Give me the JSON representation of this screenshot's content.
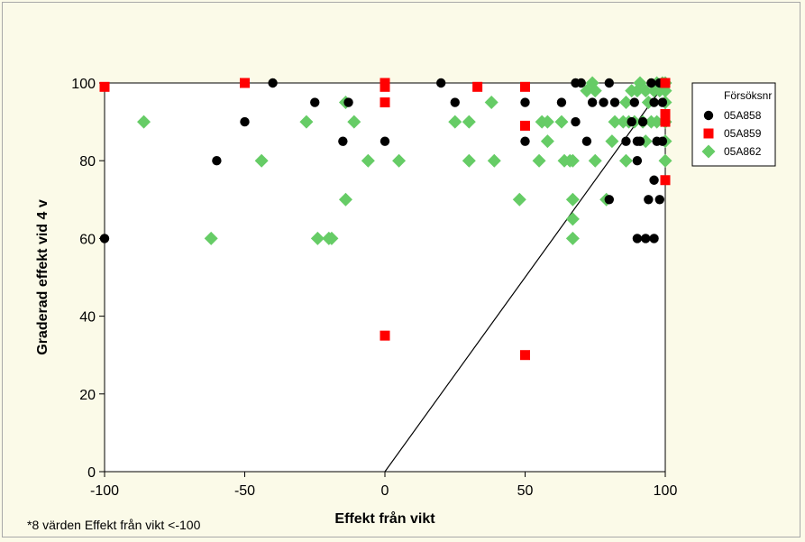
{
  "chart_data": {
    "type": "scatter",
    "xlabel": "Effekt från vikt",
    "ylabel": "Graderad effekt vid 4 v",
    "xlim": [
      -100,
      100
    ],
    "ylim": [
      0,
      100
    ],
    "xticks": [
      "-100",
      "-50",
      "0",
      "50",
      "100"
    ],
    "yticks": [
      "0",
      "20",
      "40",
      "60",
      "80",
      "100"
    ],
    "footnote": "*8 värden Effekt från vikt <-100",
    "grid": false,
    "legend": {
      "placement": "right",
      "title": "Försöksnr"
    },
    "colors": {
      "background": "#fbfae8",
      "plot_background": "#ffffff"
    },
    "reference_line": {
      "x": [
        0,
        100
      ],
      "y": [
        0,
        100
      ]
    },
    "series": [
      {
        "name": "05A858",
        "marker": "circle",
        "color": "#000000",
        "points": [
          [
            -100,
            60
          ],
          [
            -60,
            80
          ],
          [
            -50,
            90
          ],
          [
            -40,
            100
          ],
          [
            -25,
            95
          ],
          [
            -15,
            85
          ],
          [
            -13,
            95
          ],
          [
            0,
            85
          ],
          [
            20,
            100
          ],
          [
            25,
            95
          ],
          [
            50,
            85
          ],
          [
            50,
            95
          ],
          [
            63,
            95
          ],
          [
            68,
            90
          ],
          [
            68,
            100
          ],
          [
            70,
            100
          ],
          [
            72,
            85
          ],
          [
            74,
            95
          ],
          [
            78,
            95
          ],
          [
            80,
            100
          ],
          [
            80,
            70
          ],
          [
            82,
            95
          ],
          [
            86,
            85
          ],
          [
            88,
            90
          ],
          [
            89,
            95
          ],
          [
            90,
            85
          ],
          [
            90,
            80
          ],
          [
            90,
            60
          ],
          [
            91,
            85
          ],
          [
            92,
            90
          ],
          [
            93,
            60
          ],
          [
            94,
            70
          ],
          [
            95,
            100
          ],
          [
            96,
            95
          ],
          [
            96,
            75
          ],
          [
            96,
            60
          ],
          [
            97,
            85
          ],
          [
            98,
            70
          ],
          [
            98,
            100
          ],
          [
            99,
            95
          ],
          [
            99,
            85
          ],
          [
            100,
            100
          ]
        ]
      },
      {
        "name": "05A859",
        "marker": "square",
        "color": "#ff0000",
        "points": [
          [
            -100,
            99
          ],
          [
            -50,
            100
          ],
          [
            0,
            100
          ],
          [
            0,
            99
          ],
          [
            0,
            95
          ],
          [
            0,
            35
          ],
          [
            33,
            99
          ],
          [
            50,
            99
          ],
          [
            50,
            89
          ],
          [
            50,
            30
          ],
          [
            100,
            100
          ],
          [
            100,
            92
          ],
          [
            100,
            90
          ],
          [
            100,
            75
          ]
        ]
      },
      {
        "name": "05A862",
        "marker": "diamond",
        "color": "#66cc66",
        "points": [
          [
            -86,
            90
          ],
          [
            -62,
            60
          ],
          [
            -44,
            80
          ],
          [
            -24,
            60
          ],
          [
            -20,
            60
          ],
          [
            -19,
            60
          ],
          [
            -28,
            90
          ],
          [
            -14,
            95
          ],
          [
            -14,
            70
          ],
          [
            -11,
            90
          ],
          [
            -6,
            80
          ],
          [
            5,
            80
          ],
          [
            25,
            90
          ],
          [
            30,
            90
          ],
          [
            30,
            80
          ],
          [
            38,
            95
          ],
          [
            39,
            80
          ],
          [
            48,
            70
          ],
          [
            55,
            80
          ],
          [
            56,
            90
          ],
          [
            58,
            90
          ],
          [
            58,
            85
          ],
          [
            63,
            90
          ],
          [
            64,
            80
          ],
          [
            66,
            80
          ],
          [
            67,
            80
          ],
          [
            67,
            70
          ],
          [
            67,
            65
          ],
          [
            67,
            60
          ],
          [
            72,
            98
          ],
          [
            74,
            100
          ],
          [
            75,
            80
          ],
          [
            75,
            98
          ],
          [
            79,
            70
          ],
          [
            81,
            85
          ],
          [
            82,
            90
          ],
          [
            85,
            90
          ],
          [
            86,
            80
          ],
          [
            86,
            95
          ],
          [
            87,
            90
          ],
          [
            88,
            98
          ],
          [
            89,
            90
          ],
          [
            90,
            98
          ],
          [
            91,
            100
          ],
          [
            92,
            90
          ],
          [
            93,
            98
          ],
          [
            93,
            85
          ],
          [
            94,
            95
          ],
          [
            95,
            90
          ],
          [
            96,
            98
          ],
          [
            97,
            100
          ],
          [
            97,
            90
          ],
          [
            98,
            98
          ],
          [
            99,
            100
          ],
          [
            100,
            100
          ],
          [
            100,
            98
          ],
          [
            100,
            95
          ],
          [
            100,
            90
          ],
          [
            100,
            85
          ],
          [
            100,
            80
          ]
        ]
      }
    ]
  }
}
